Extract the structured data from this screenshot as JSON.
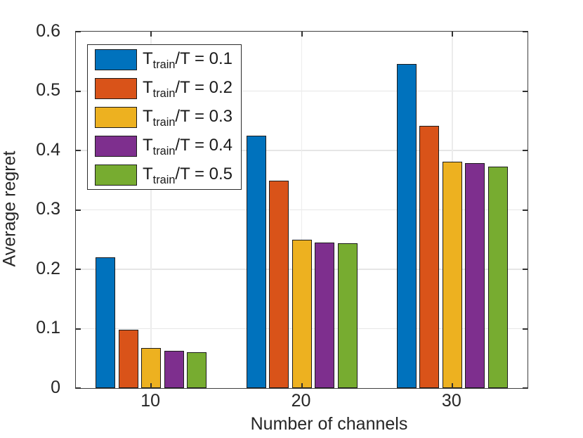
{
  "figure": {
    "background": "#ffffff",
    "axis_color": "#3f3f3f",
    "grid_color": "#e6e6e6",
    "bar_edge_color": "#1c1c1c"
  },
  "chart_data": {
    "type": "bar",
    "title": "",
    "xlabel": "Number of channels",
    "ylabel": "Average regret",
    "categories": [
      "10",
      "20",
      "30"
    ],
    "series": [
      {
        "name": "T_train/T = 0.1",
        "label_pre": "T",
        "label_sub": "train",
        "label_post": "/T = 0.1",
        "color": "#0072BD",
        "values": [
          0.22,
          0.425,
          0.545
        ]
      },
      {
        "name": "T_train/T = 0.2",
        "label_pre": "T",
        "label_sub": "train",
        "label_post": "/T = 0.2",
        "color": "#D95319",
        "values": [
          0.098,
          0.349,
          0.441
        ]
      },
      {
        "name": "T_train/T = 0.3",
        "label_pre": "T",
        "label_sub": "train",
        "label_post": "/T = 0.3",
        "color": "#EDB120",
        "values": [
          0.067,
          0.25,
          0.381
        ]
      },
      {
        "name": "T_train/T = 0.4",
        "label_pre": "T",
        "label_sub": "train",
        "label_post": "/T = 0.4",
        "color": "#7E2F8E",
        "values": [
          0.063,
          0.245,
          0.379
        ]
      },
      {
        "name": "T_train/T = 0.5",
        "label_pre": "T",
        "label_sub": "train",
        "label_post": "/T = 0.5",
        "color": "#77AC30",
        "values": [
          0.06,
          0.244,
          0.373
        ]
      }
    ],
    "ylim": [
      0,
      0.6
    ],
    "ytick_labels": [
      "0",
      "0.1",
      "0.2",
      "0.3",
      "0.4",
      "0.5",
      "0.6"
    ],
    "yticks": [
      0,
      0.1,
      0.2,
      0.3,
      0.4,
      0.5,
      0.6
    ],
    "grid": true,
    "legend_position": "top-left"
  }
}
